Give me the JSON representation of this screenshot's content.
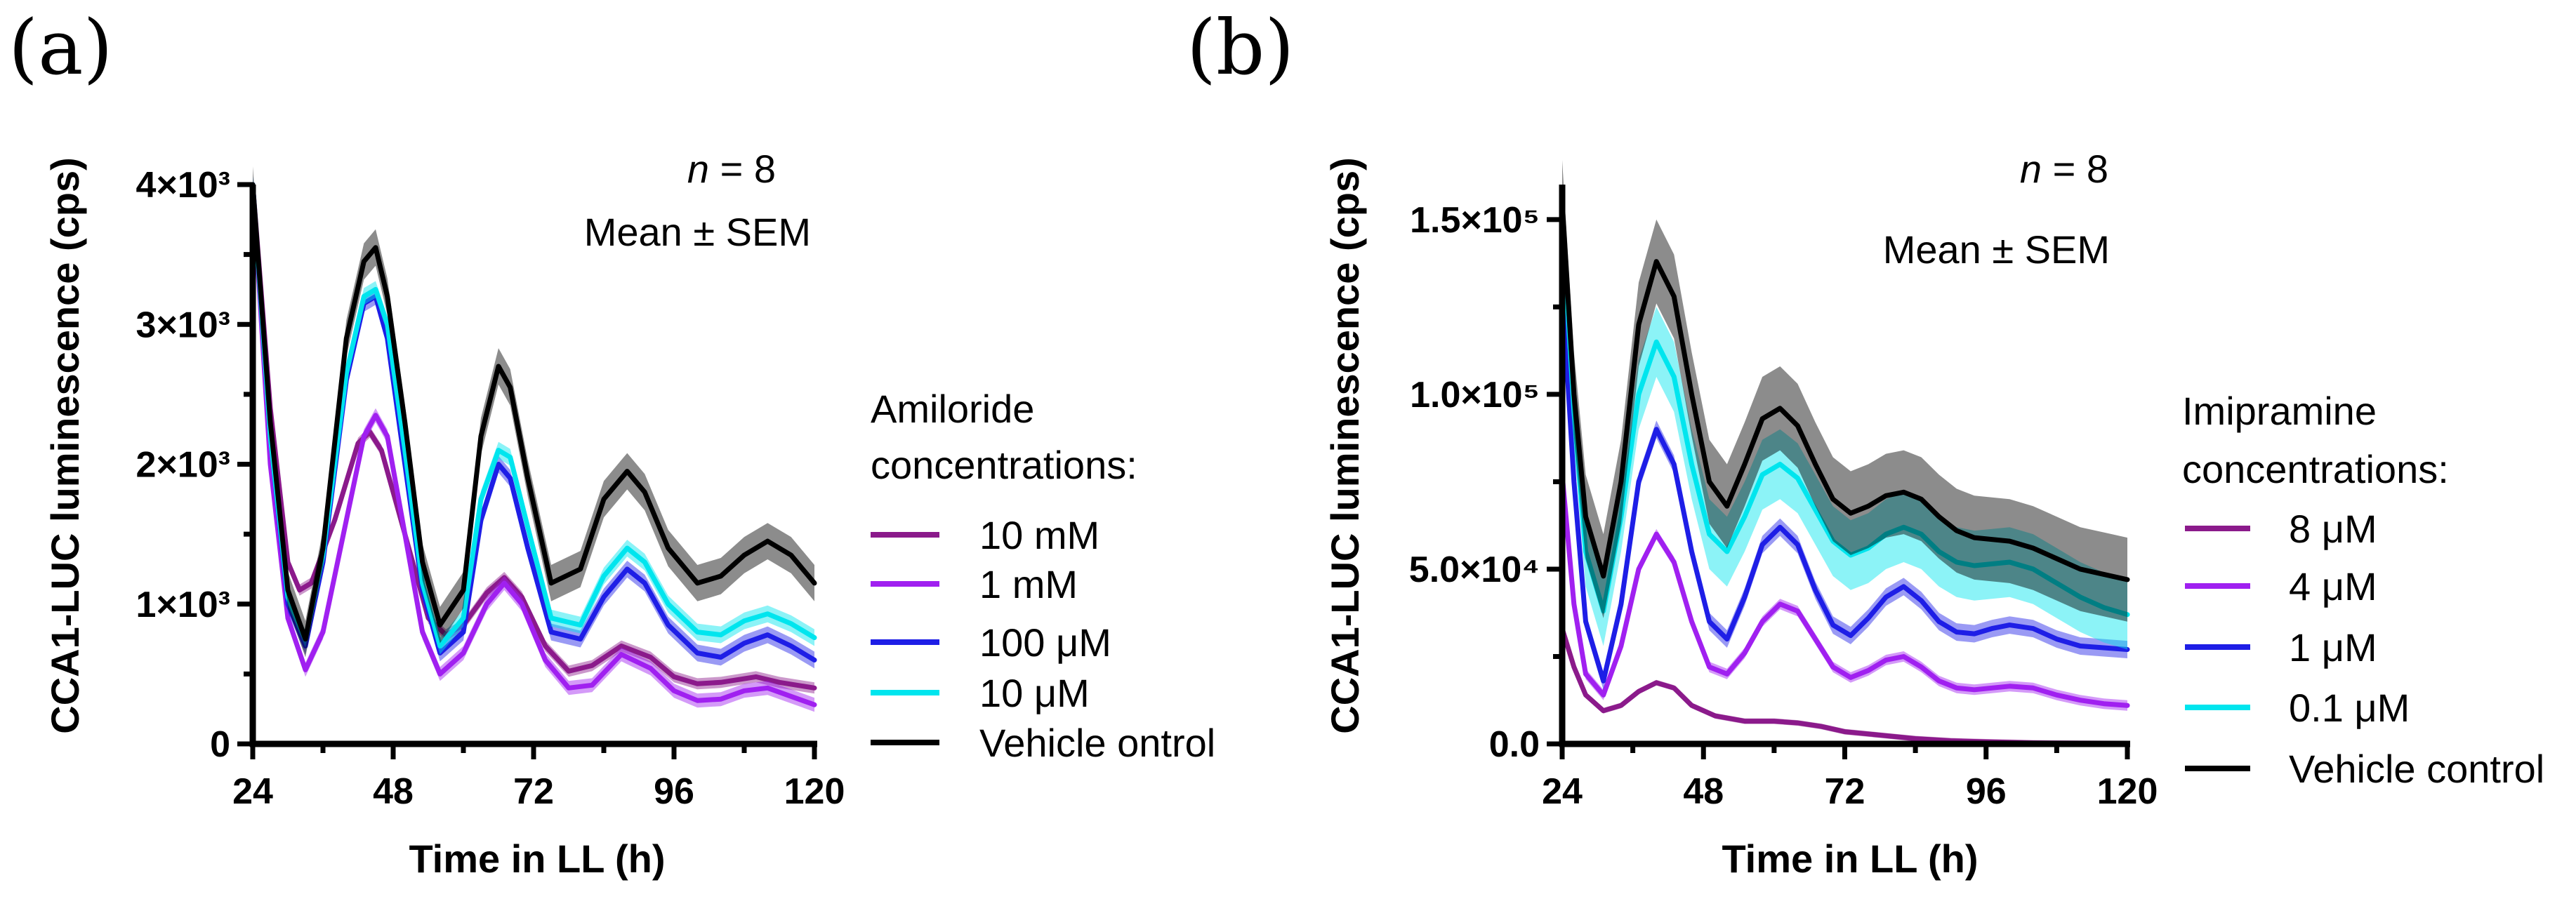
{
  "chart_data": [
    {
      "type": "line",
      "panel_label": "(a)",
      "xlabel": "Time in LL (h)",
      "ylabel": "CCA1-LUC luminescence (cps)",
      "xlim": [
        24,
        120
      ],
      "ylim": [
        0,
        4000
      ],
      "xticks": [
        24,
        48,
        72,
        96,
        120
      ],
      "xtick_labels": [
        "24",
        "48",
        "72",
        "96",
        "120"
      ],
      "yticks": [
        0,
        1000,
        2000,
        3000,
        4000
      ],
      "ytick_labels": [
        "0",
        "1×10³",
        "2×10³",
        "3×10³",
        "4×10³"
      ],
      "annotation": {
        "n_label": "n",
        "n_value": " = 8",
        "stat": "Mean ± SEM"
      },
      "legend": {
        "title_lines": [
          "Amiloride",
          "concentrations:"
        ]
      },
      "series": [
        {
          "name": "10 mM",
          "color": "#8B1A8B",
          "error": 40,
          "x": [
            24,
            27,
            30,
            32,
            34,
            38,
            42,
            44,
            46,
            50,
            54,
            57,
            60,
            64,
            67,
            70,
            74,
            78,
            82,
            87,
            92,
            96,
            100,
            104,
            110,
            114,
            120
          ],
          "y": [
            4000,
            2400,
            1300,
            1100,
            1150,
            1600,
            2150,
            2230,
            2100,
            1500,
            900,
            780,
            850,
            1080,
            1190,
            1050,
            700,
            520,
            560,
            700,
            620,
            480,
            430,
            440,
            480,
            440,
            400
          ]
        },
        {
          "name": "1 mM",
          "color": "#A020F0",
          "error": 50,
          "x": [
            24,
            27,
            30,
            33,
            36,
            40,
            43,
            45,
            47,
            50,
            53,
            56,
            60,
            64,
            67,
            70,
            74,
            78,
            82,
            87,
            92,
            96,
            100,
            104,
            108,
            112,
            116,
            120
          ],
          "y": [
            4000,
            2000,
            900,
            530,
            800,
            1600,
            2200,
            2350,
            2200,
            1500,
            800,
            500,
            650,
            1000,
            1150,
            1000,
            600,
            400,
            420,
            640,
            540,
            380,
            310,
            320,
            380,
            400,
            340,
            280
          ]
        },
        {
          "name": "100 μM",
          "color": "#1E1EE6",
          "error": 60,
          "x": [
            24,
            27,
            30,
            33,
            36,
            40,
            43,
            45,
            47,
            50,
            53,
            56,
            60,
            63,
            66,
            68,
            71,
            75,
            80,
            84,
            88,
            91,
            95,
            100,
            104,
            108,
            112,
            116,
            120
          ],
          "y": [
            4000,
            2200,
            1000,
            700,
            1300,
            2600,
            3150,
            3200,
            2900,
            2000,
            1100,
            650,
            800,
            1600,
            2000,
            1900,
            1400,
            800,
            750,
            1050,
            1250,
            1150,
            850,
            650,
            620,
            720,
            780,
            700,
            600
          ]
        },
        {
          "name": "10 μM",
          "color": "#00E5EE",
          "error": 60,
          "x": [
            24,
            27,
            30,
            33,
            36,
            40,
            43,
            45,
            47,
            50,
            53,
            56,
            60,
            63,
            66,
            68,
            71,
            75,
            80,
            84,
            88,
            91,
            95,
            100,
            104,
            108,
            112,
            116,
            120
          ],
          "y": [
            4000,
            2200,
            1050,
            750,
            1350,
            2650,
            3200,
            3250,
            3000,
            2100,
            1150,
            700,
            900,
            1750,
            2100,
            2050,
            1550,
            900,
            850,
            1200,
            1400,
            1300,
            1000,
            800,
            780,
            880,
            930,
            860,
            760
          ]
        },
        {
          "name": "Vehicle ontrol",
          "color": "#000000",
          "error": 130,
          "x": [
            24,
            27,
            30,
            33,
            36,
            40,
            43,
            45,
            47,
            50,
            53,
            56,
            60,
            63,
            66,
            68,
            71,
            75,
            80,
            84,
            88,
            91,
            95,
            100,
            104,
            108,
            112,
            116,
            120
          ],
          "y": [
            4000,
            2300,
            1100,
            750,
            1400,
            2900,
            3450,
            3550,
            3200,
            2300,
            1300,
            850,
            1100,
            2200,
            2700,
            2550,
            1900,
            1150,
            1250,
            1750,
            1950,
            1800,
            1400,
            1150,
            1200,
            1350,
            1450,
            1350,
            1150
          ]
        }
      ]
    },
    {
      "type": "line",
      "panel_label": "(b)",
      "xlabel": "Time in LL (h)",
      "ylabel": "CCA1-LUC luminescence (cps)",
      "xlim": [
        24,
        120
      ],
      "ylim": [
        0,
        160000
      ],
      "xticks": [
        24,
        48,
        72,
        96,
        120
      ],
      "xtick_labels": [
        "24",
        "48",
        "72",
        "96",
        "120"
      ],
      "yticks": [
        0,
        50000,
        100000,
        150000
      ],
      "ytick_labels": [
        "0.0",
        "5.0×10⁴",
        "1.0×10⁵",
        "1.5×10⁵"
      ],
      "annotation": {
        "n_label": "n",
        "n_value": " = 8",
        "stat": "Mean ± SEM"
      },
      "legend": {
        "title_lines": [
          "Imipramine",
          "concentrations:"
        ]
      },
      "series": [
        {
          "name": "8 μM",
          "color": "#8B1A8B",
          "error": 800,
          "x": [
            24,
            26,
            28,
            31,
            34,
            37,
            40,
            43,
            46,
            50,
            55,
            60,
            64,
            68,
            72,
            78,
            84,
            90,
            96,
            104,
            112,
            120
          ],
          "y": [
            33000,
            22000,
            14000,
            9500,
            11000,
            15000,
            17500,
            16000,
            11000,
            8000,
            6500,
            6500,
            6000,
            5000,
            3500,
            2500,
            1500,
            900,
            600,
            300,
            200,
            100
          ]
        },
        {
          "name": "4 μM",
          "color": "#A020F0",
          "error": 1500,
          "x": [
            24,
            26,
            28,
            31,
            34,
            37,
            40,
            43,
            46,
            49,
            52,
            55,
            58,
            61,
            64,
            67,
            70,
            73,
            76,
            79,
            82,
            85,
            88,
            91,
            94,
            97,
            100,
            104,
            108,
            112,
            116,
            120
          ],
          "y": [
            77000,
            40000,
            20000,
            14000,
            28000,
            50000,
            60000,
            52000,
            35000,
            22000,
            20000,
            26000,
            35000,
            40000,
            38000,
            30000,
            22000,
            19000,
            21000,
            24000,
            25000,
            22000,
            18000,
            16000,
            15500,
            16000,
            16500,
            16000,
            14000,
            12500,
            11500,
            11000
          ]
        },
        {
          "name": "1 μM",
          "color": "#1E1EE6",
          "error": 2500,
          "x": [
            24,
            26,
            28,
            31,
            34,
            37,
            40,
            43,
            46,
            49,
            52,
            55,
            58,
            61,
            64,
            67,
            70,
            73,
            76,
            79,
            82,
            85,
            88,
            91,
            94,
            97,
            100,
            104,
            108,
            112,
            116,
            120
          ],
          "y": [
            130000,
            75000,
            35000,
            18000,
            40000,
            75000,
            90000,
            80000,
            55000,
            35000,
            30000,
            42000,
            57000,
            62000,
            57000,
            44000,
            34000,
            31000,
            36000,
            42000,
            45000,
            41000,
            35000,
            32000,
            31500,
            33000,
            34000,
            33000,
            30000,
            28000,
            27500,
            27000
          ]
        },
        {
          "name": "0.1 μM",
          "color": "#00E5EE",
          "error": 10000,
          "x": [
            24,
            26,
            28,
            31,
            34,
            37,
            40,
            43,
            46,
            49,
            52,
            55,
            58,
            61,
            64,
            67,
            70,
            73,
            76,
            79,
            82,
            85,
            88,
            91,
            94,
            97,
            100,
            104,
            108,
            112,
            116,
            120
          ],
          "y": [
            150000,
            95000,
            55000,
            38000,
            65000,
            100000,
            115000,
            105000,
            80000,
            60000,
            55000,
            65000,
            77000,
            80000,
            76000,
            67000,
            58000,
            54000,
            56000,
            60000,
            62000,
            60000,
            55000,
            52000,
            51000,
            51500,
            52000,
            50000,
            46000,
            42000,
            39000,
            37000
          ]
        },
        {
          "name": "Vehicle control",
          "color": "#000000",
          "error": 12000,
          "x": [
            24,
            26,
            28,
            31,
            34,
            37,
            40,
            43,
            46,
            49,
            52,
            55,
            58,
            61,
            64,
            67,
            70,
            73,
            76,
            79,
            82,
            85,
            88,
            91,
            94,
            97,
            100,
            104,
            108,
            112,
            116,
            120
          ],
          "y": [
            155000,
            100000,
            65000,
            48000,
            75000,
            120000,
            138000,
            128000,
            100000,
            75000,
            68000,
            80000,
            93000,
            96000,
            91000,
            80000,
            70000,
            66000,
            68000,
            71000,
            72000,
            70000,
            65000,
            61000,
            59000,
            58500,
            58000,
            56000,
            53000,
            50000,
            48500,
            47000
          ]
        }
      ]
    }
  ]
}
